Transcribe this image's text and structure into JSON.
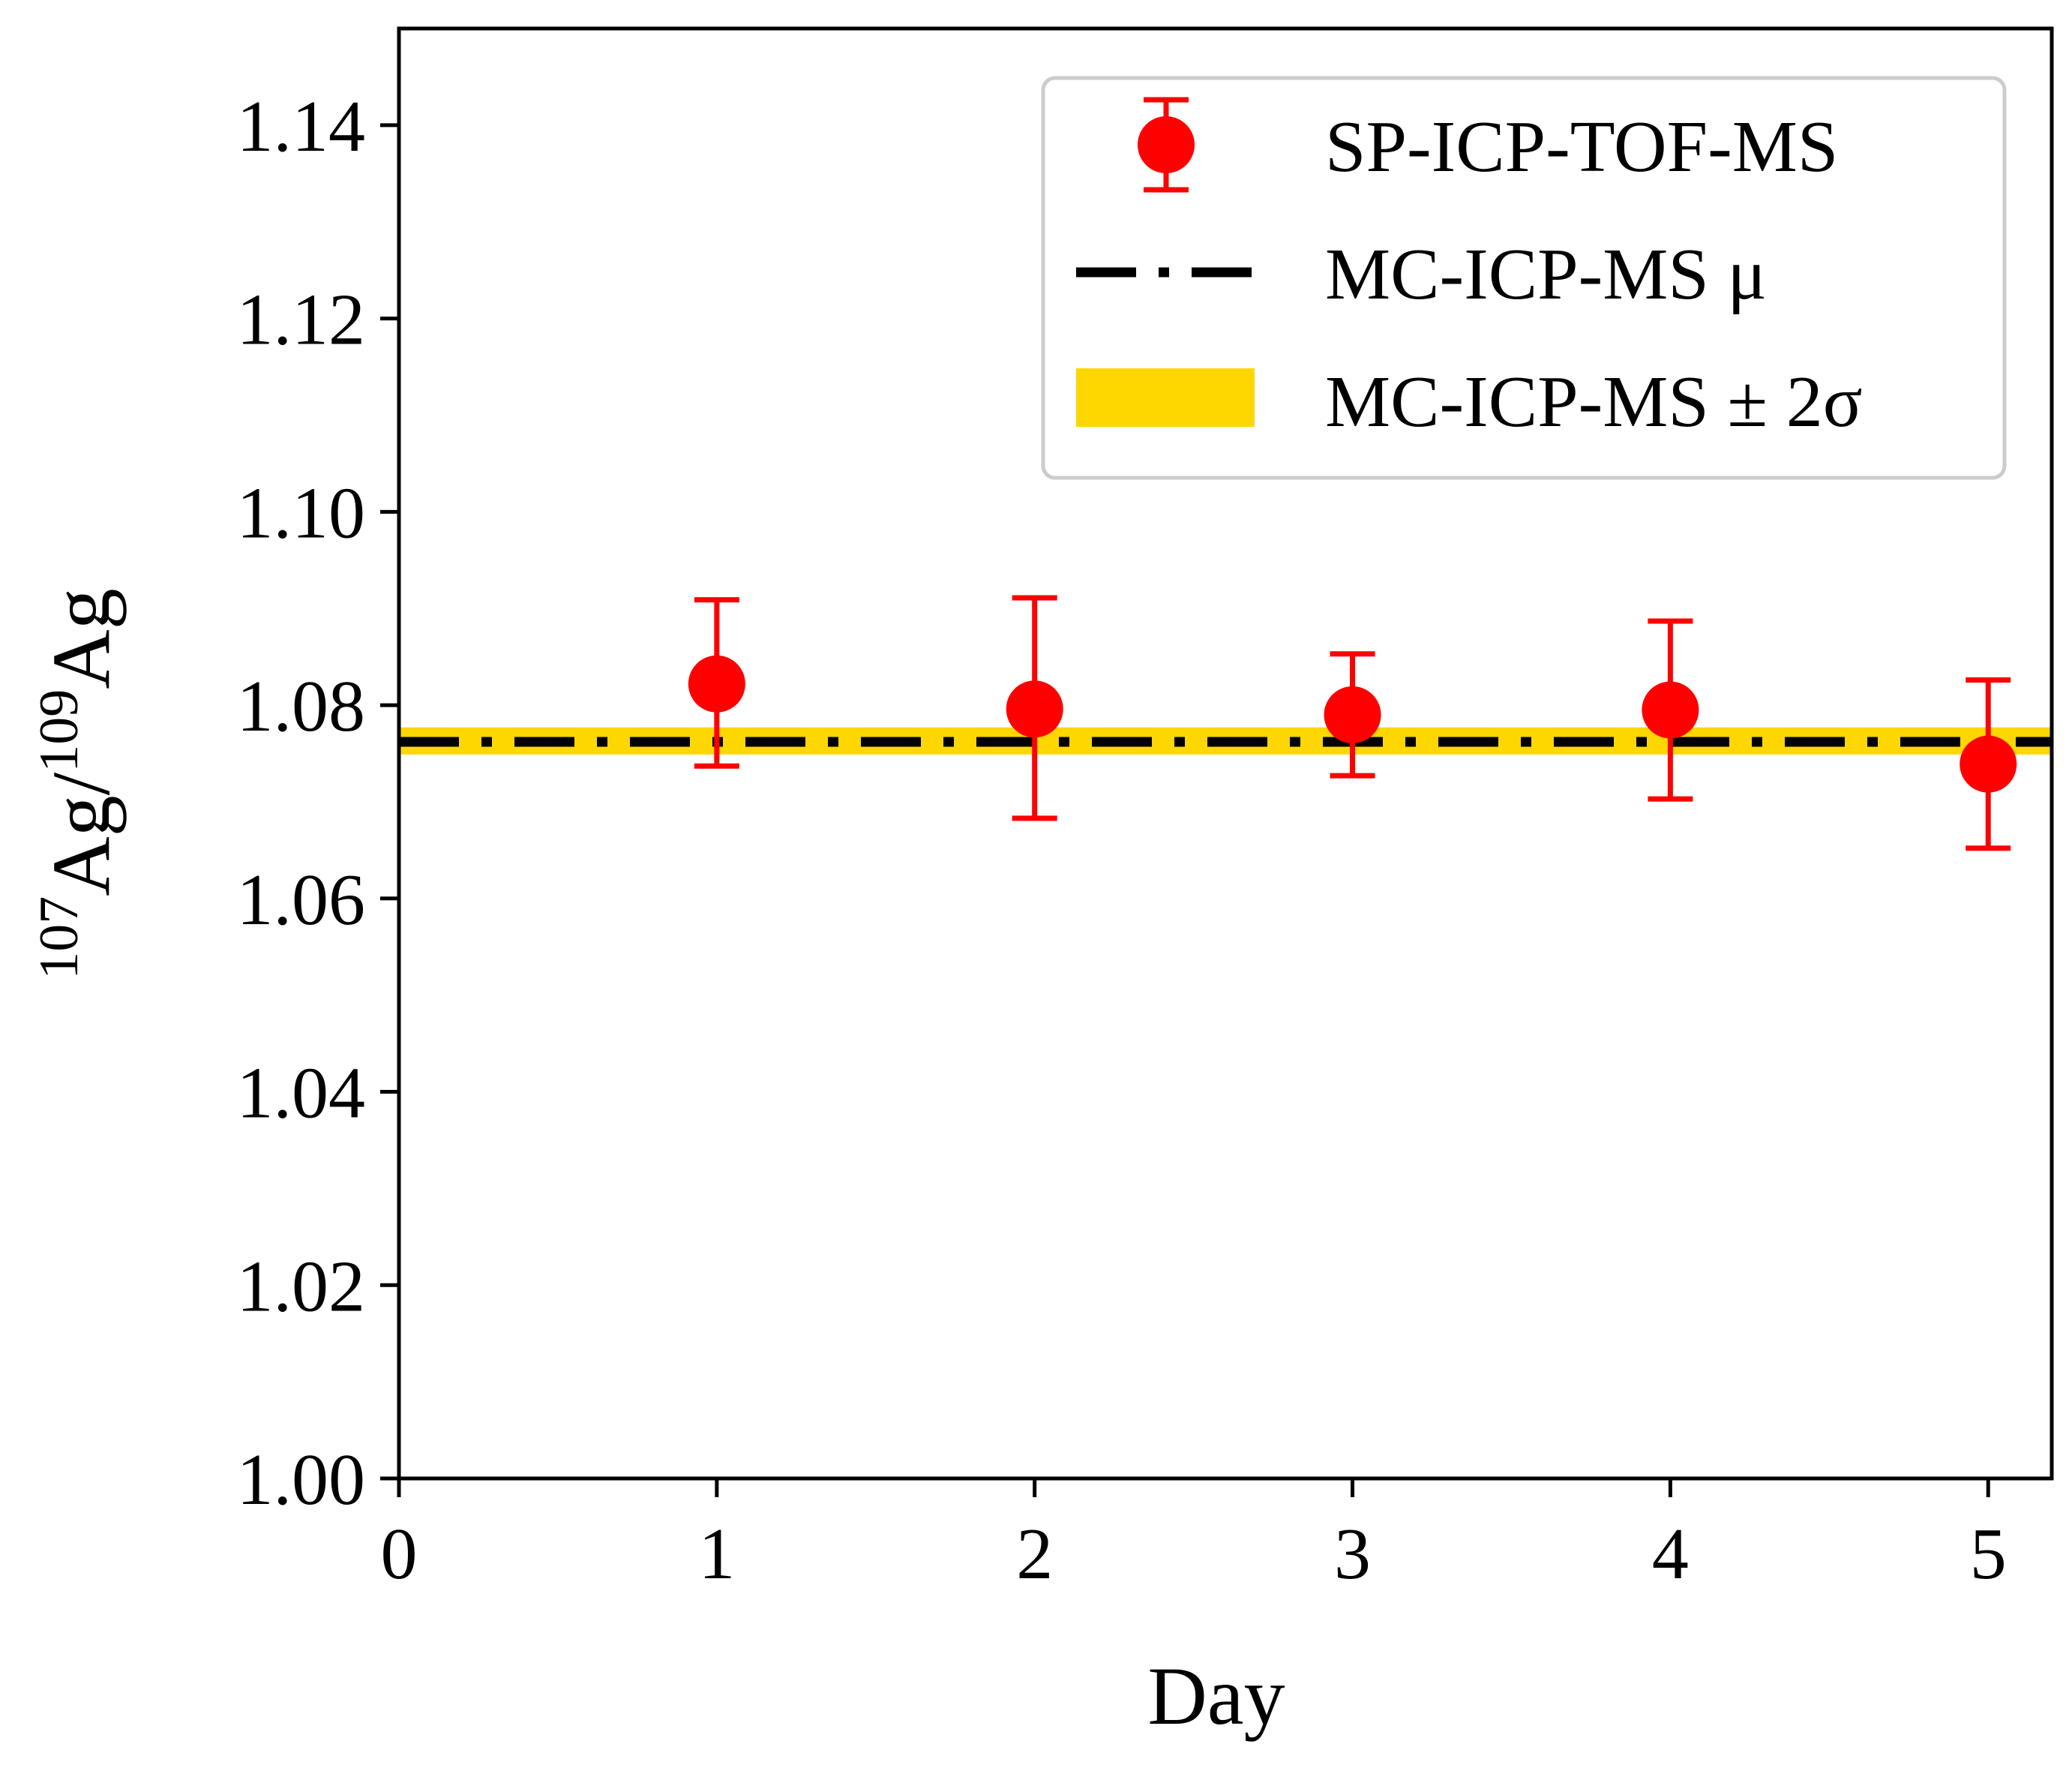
{
  "chart_data": {
    "type": "scatter",
    "title": "",
    "xlabel": "Day",
    "ylabel": {
      "sup1": "107",
      "base1": "Ag/",
      "sup2": "109",
      "base2": "Ag"
    },
    "xlim": [
      0,
      5.2
    ],
    "ylim": [
      1.0,
      1.15
    ],
    "xticks": [
      "0",
      "1",
      "2",
      "3",
      "4",
      "5"
    ],
    "yticks": [
      "1.00",
      "1.02",
      "1.04",
      "1.06",
      "1.08",
      "1.10",
      "1.12",
      "1.14"
    ],
    "grid": false,
    "legend_position": "top-right",
    "series": [
      {
        "name": "SP-ICP-TOF-MS",
        "kind": "errorbar",
        "color": "#ff0000",
        "x": [
          1,
          2,
          3,
          4,
          5
        ],
        "y": [
          1.0822,
          1.0796,
          1.079,
          1.0795,
          1.0739
        ],
        "yerr_low": [
          1.0737,
          1.0683,
          1.0727,
          1.0703,
          1.0652
        ],
        "yerr_high": [
          1.0909,
          1.0911,
          1.0853,
          1.0887,
          1.0826
        ]
      },
      {
        "name": "MC-ICP-MS μ",
        "kind": "hline",
        "style": "dashdot",
        "color": "#000000",
        "y": 1.0762
      },
      {
        "name": "MC-ICP-MS ± 2σ",
        "kind": "band",
        "color": "#ffd700",
        "y_low": 1.0749,
        "y_high": 1.0777
      }
    ]
  }
}
